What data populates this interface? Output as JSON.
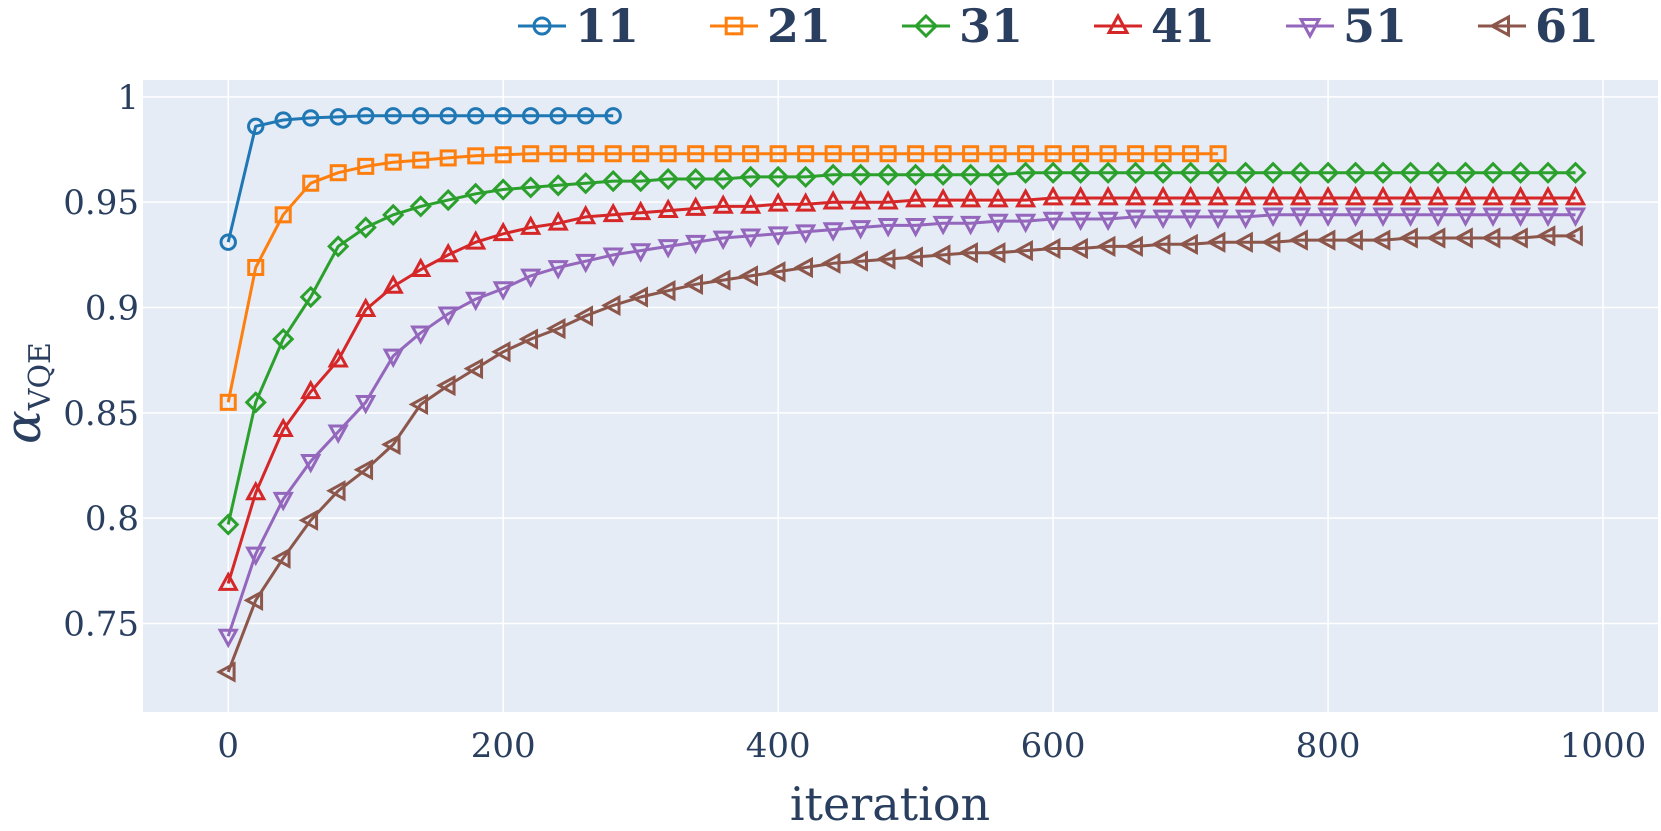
{
  "chart_data": {
    "type": "line",
    "title": "",
    "xlabel": "iteration",
    "ylabel": "α",
    "ylabel_subscript": "VQE",
    "xlim": [
      -62,
      1040
    ],
    "ylim": [
      0.708,
      1.008
    ],
    "x_ticks": [
      0,
      200,
      400,
      600,
      800,
      1000
    ],
    "x_tick_labels": [
      "0",
      "200",
      "400",
      "600",
      "800",
      "1000"
    ],
    "y_ticks": [
      0.75,
      0.8,
      0.85,
      0.9,
      0.95,
      1.0
    ],
    "y_tick_labels": [
      "0.75",
      "0.8",
      "0.85",
      "0.9",
      "0.95",
      "1"
    ],
    "grid": true,
    "legend_position": "top",
    "series": [
      {
        "name": "11",
        "color": "#1f77b4",
        "marker": "circle",
        "x": [
          0,
          20,
          40,
          60,
          80,
          100,
          120,
          140,
          160,
          180,
          200,
          220,
          240,
          260,
          280
        ],
        "y": [
          0.931,
          0.986,
          0.989,
          0.99,
          0.9905,
          0.991,
          0.991,
          0.991,
          0.991,
          0.991,
          0.991,
          0.991,
          0.991,
          0.991,
          0.991
        ]
      },
      {
        "name": "21",
        "color": "#ff7f0e",
        "marker": "square",
        "x": [
          0,
          20,
          40,
          60,
          80,
          100,
          120,
          140,
          160,
          180,
          200,
          220,
          240,
          260,
          280,
          300,
          320,
          340,
          360,
          380,
          400,
          420,
          440,
          460,
          480,
          500,
          520,
          540,
          560,
          580,
          600,
          620,
          640,
          660,
          680,
          700,
          720
        ],
        "y": [
          0.855,
          0.919,
          0.944,
          0.959,
          0.964,
          0.967,
          0.969,
          0.97,
          0.971,
          0.972,
          0.9725,
          0.973,
          0.973,
          0.973,
          0.973,
          0.973,
          0.973,
          0.973,
          0.973,
          0.973,
          0.973,
          0.973,
          0.973,
          0.973,
          0.973,
          0.973,
          0.973,
          0.973,
          0.973,
          0.973,
          0.973,
          0.973,
          0.973,
          0.973,
          0.973,
          0.973,
          0.973
        ]
      },
      {
        "name": "31",
        "color": "#2ca02c",
        "marker": "diamond",
        "x": [
          0,
          20,
          40,
          60,
          80,
          100,
          120,
          140,
          160,
          180,
          200,
          220,
          240,
          260,
          280,
          300,
          320,
          340,
          360,
          380,
          400,
          420,
          440,
          460,
          480,
          500,
          520,
          540,
          560,
          580,
          600,
          620,
          640,
          660,
          680,
          700,
          720,
          740,
          760,
          780,
          800,
          820,
          840,
          860,
          880,
          900,
          920,
          940,
          960,
          980
        ],
        "y": [
          0.797,
          0.855,
          0.885,
          0.905,
          0.929,
          0.938,
          0.944,
          0.948,
          0.951,
          0.954,
          0.956,
          0.957,
          0.958,
          0.959,
          0.96,
          0.96,
          0.961,
          0.961,
          0.961,
          0.962,
          0.962,
          0.962,
          0.963,
          0.963,
          0.963,
          0.963,
          0.963,
          0.963,
          0.963,
          0.964,
          0.964,
          0.964,
          0.964,
          0.964,
          0.964,
          0.964,
          0.964,
          0.964,
          0.964,
          0.964,
          0.964,
          0.964,
          0.964,
          0.964,
          0.964,
          0.964,
          0.964,
          0.964,
          0.964,
          0.964
        ]
      },
      {
        "name": "41",
        "color": "#d62728",
        "marker": "triangle-up",
        "x": [
          0,
          20,
          40,
          60,
          80,
          100,
          120,
          140,
          160,
          180,
          200,
          220,
          240,
          260,
          280,
          300,
          320,
          340,
          360,
          380,
          400,
          420,
          440,
          460,
          480,
          500,
          520,
          540,
          560,
          580,
          600,
          620,
          640,
          660,
          680,
          700,
          720,
          740,
          760,
          780,
          800,
          820,
          840,
          860,
          880,
          900,
          920,
          940,
          960,
          980
        ],
        "y": [
          0.769,
          0.812,
          0.842,
          0.86,
          0.875,
          0.899,
          0.91,
          0.918,
          0.925,
          0.931,
          0.935,
          0.938,
          0.94,
          0.943,
          0.944,
          0.945,
          0.946,
          0.947,
          0.948,
          0.948,
          0.949,
          0.949,
          0.95,
          0.95,
          0.95,
          0.951,
          0.951,
          0.951,
          0.951,
          0.951,
          0.952,
          0.952,
          0.952,
          0.952,
          0.952,
          0.952,
          0.952,
          0.952,
          0.952,
          0.952,
          0.952,
          0.952,
          0.952,
          0.952,
          0.952,
          0.952,
          0.952,
          0.952,
          0.952,
          0.952
        ]
      },
      {
        "name": "51",
        "color": "#9467bd",
        "marker": "triangle-down",
        "x": [
          0,
          20,
          40,
          60,
          80,
          100,
          120,
          140,
          160,
          180,
          200,
          220,
          240,
          260,
          280,
          300,
          320,
          340,
          360,
          380,
          400,
          420,
          440,
          460,
          480,
          500,
          520,
          540,
          560,
          580,
          600,
          620,
          640,
          660,
          680,
          700,
          720,
          740,
          760,
          780,
          800,
          820,
          840,
          860,
          880,
          900,
          920,
          940,
          960,
          980
        ],
        "y": [
          0.744,
          0.783,
          0.809,
          0.827,
          0.841,
          0.855,
          0.877,
          0.888,
          0.897,
          0.904,
          0.909,
          0.915,
          0.919,
          0.922,
          0.925,
          0.927,
          0.929,
          0.931,
          0.933,
          0.934,
          0.935,
          0.936,
          0.937,
          0.938,
          0.939,
          0.939,
          0.94,
          0.94,
          0.941,
          0.941,
          0.942,
          0.942,
          0.942,
          0.943,
          0.943,
          0.943,
          0.943,
          0.943,
          0.944,
          0.944,
          0.944,
          0.944,
          0.944,
          0.944,
          0.944,
          0.944,
          0.944,
          0.944,
          0.944,
          0.944
        ]
      },
      {
        "name": "61",
        "color": "#8c564b",
        "marker": "triangle-left",
        "x": [
          0,
          20,
          40,
          60,
          80,
          100,
          120,
          140,
          160,
          180,
          200,
          220,
          240,
          260,
          280,
          300,
          320,
          340,
          360,
          380,
          400,
          420,
          440,
          460,
          480,
          500,
          520,
          540,
          560,
          580,
          600,
          620,
          640,
          660,
          680,
          700,
          720,
          740,
          760,
          780,
          800,
          820,
          840,
          860,
          880,
          900,
          920,
          940,
          960,
          980
        ],
        "y": [
          0.727,
          0.761,
          0.781,
          0.799,
          0.813,
          0.823,
          0.835,
          0.854,
          0.863,
          0.871,
          0.879,
          0.885,
          0.89,
          0.896,
          0.901,
          0.905,
          0.908,
          0.911,
          0.913,
          0.915,
          0.917,
          0.919,
          0.921,
          0.922,
          0.923,
          0.924,
          0.925,
          0.926,
          0.926,
          0.927,
          0.928,
          0.928,
          0.929,
          0.929,
          0.93,
          0.93,
          0.931,
          0.931,
          0.931,
          0.932,
          0.932,
          0.932,
          0.932,
          0.933,
          0.933,
          0.933,
          0.933,
          0.933,
          0.934,
          0.934
        ]
      }
    ]
  }
}
